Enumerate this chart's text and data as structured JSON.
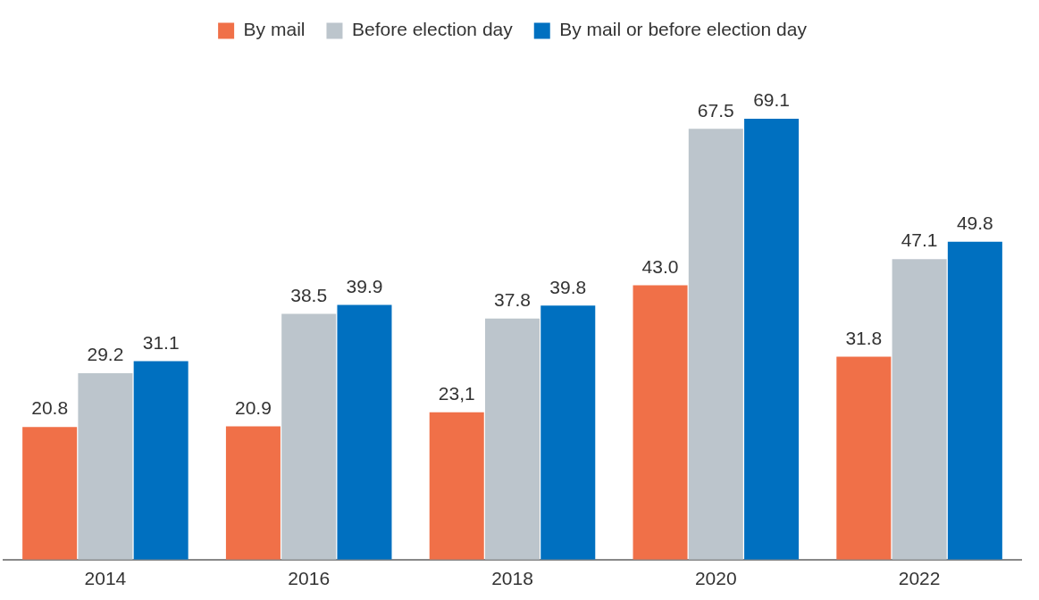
{
  "chart_data": {
    "type": "bar",
    "categories": [
      "2014",
      "2016",
      "2018",
      "2020",
      "2022"
    ],
    "series": [
      {
        "name": "By mail",
        "color": "#f07048",
        "values": [
          20.8,
          20.9,
          23.1,
          43.0,
          31.8
        ],
        "value_labels": [
          "20.8",
          "20.9",
          "23,1",
          "43.0",
          "31.8"
        ]
      },
      {
        "name": "Before election day",
        "color": "#bcc5cc",
        "values": [
          29.2,
          38.5,
          37.8,
          67.5,
          47.1
        ],
        "value_labels": [
          "29.2",
          "38.5",
          "37.8",
          "67.5",
          "47.1"
        ]
      },
      {
        "name": "By mail or before election day",
        "color": "#0070c0",
        "values": [
          31.1,
          39.9,
          39.8,
          69.1,
          49.8
        ],
        "value_labels": [
          "31.1",
          "39.9",
          "39.8",
          "69.1",
          "49.8"
        ]
      }
    ],
    "legend": "top",
    "grid": false
  }
}
